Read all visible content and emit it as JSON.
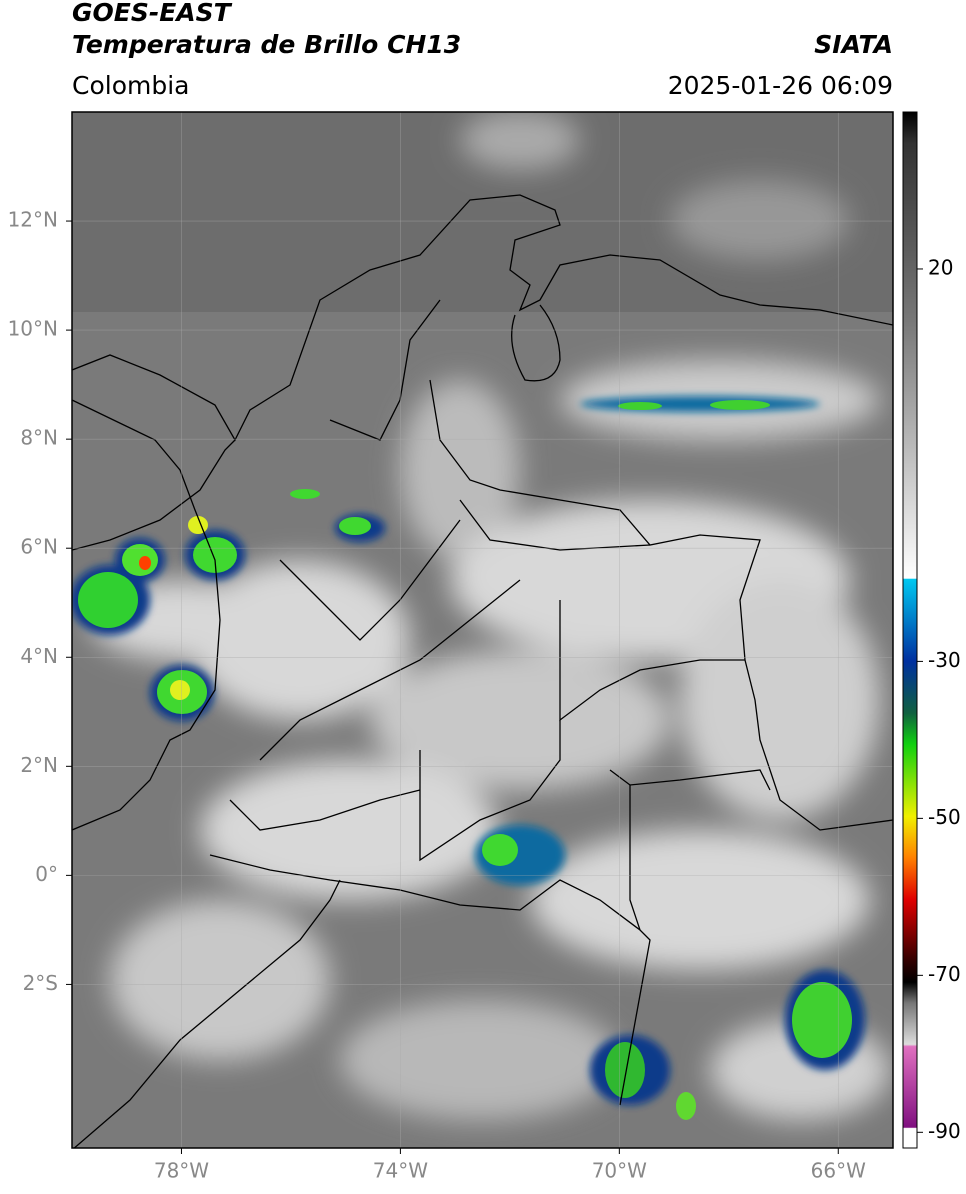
{
  "header": {
    "title": "GOES-EAST",
    "subtitle": "Temperatura de Brillo CH13",
    "region": "Colombia",
    "source": "SIATA",
    "datetime": "2025-01-26 06:09"
  },
  "map": {
    "xlim": [
      -80,
      -65
    ],
    "ylim": [
      -5,
      14
    ],
    "xticks": [
      {
        "value": -78,
        "label": "78°W"
      },
      {
        "value": -74,
        "label": "74°W"
      },
      {
        "value": -70,
        "label": "70°W"
      },
      {
        "value": -66,
        "label": "66°W"
      }
    ],
    "yticks": [
      {
        "value": 12,
        "label": "12°N"
      },
      {
        "value": 10,
        "label": "10°N"
      },
      {
        "value": 8,
        "label": "8°N"
      },
      {
        "value": 6,
        "label": "6°N"
      },
      {
        "value": 4,
        "label": "4°N"
      },
      {
        "value": 2,
        "label": "2°N"
      },
      {
        "value": 0,
        "label": "0°"
      },
      {
        "value": -2,
        "label": "2°S"
      }
    ],
    "grid": true
  },
  "colorbar": {
    "lim": [
      -92,
      40
    ],
    "ticks": [
      20,
      -30,
      -50,
      -70,
      -90
    ]
  }
}
